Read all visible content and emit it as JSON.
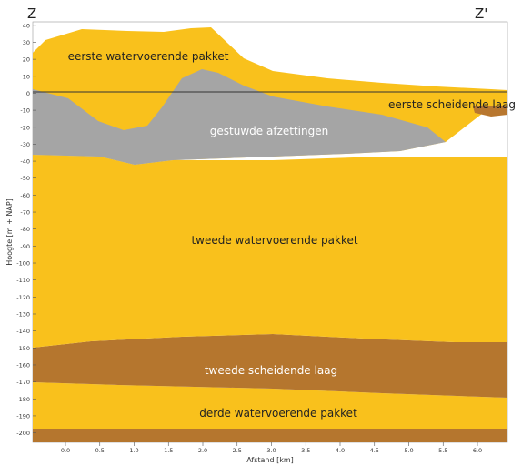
{
  "section_labels": {
    "left": "Z",
    "right": "Z'"
  },
  "y_axis": {
    "label": "Hoogte [m + NAP]",
    "ticks": [
      40,
      30,
      20,
      10,
      0,
      -10,
      -20,
      -30,
      -40,
      -50,
      -60,
      -70,
      -80,
      -90,
      -100,
      -110,
      -120,
      -130,
      -140,
      -150,
      -160,
      -170,
      -180,
      -190,
      -200
    ]
  },
  "x_axis": {
    "label": "Afstand [km]",
    "ticks": [
      "0.0",
      "0.5",
      "1.0",
      "1.5",
      "2.0",
      "2.5",
      "3.0",
      "3.5",
      "4.0",
      "4.5",
      "5.0",
      "5.5",
      "6.0"
    ]
  },
  "layers": {
    "aquifer1": {
      "name": "eerste watervoerende pakket",
      "color": "#f9c11c"
    },
    "aquitard1": {
      "name": "eerste scheidende laag",
      "color": "#b8772f"
    },
    "pushed": {
      "name": "gestuwde afzettingen",
      "color": "#a5a5a5"
    },
    "aquifer2": {
      "name": "tweede watervoerende pakket",
      "color": "#f9c11c"
    },
    "aquitard2": {
      "name": "tweede scheidende laag",
      "color": "#b5762e"
    },
    "aquifer3": {
      "name": "derde watervoerende pakket",
      "color": "#f9c11c"
    }
  }
}
